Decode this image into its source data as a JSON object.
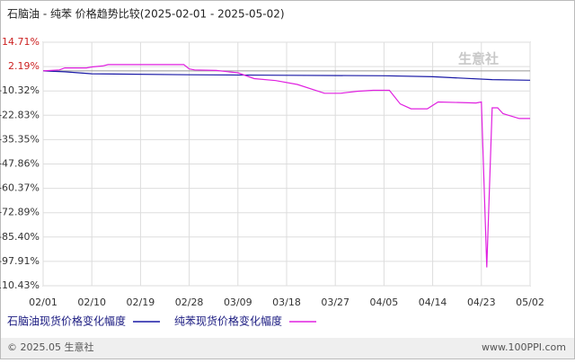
{
  "chart_data": {
    "type": "line",
    "title": "石脑油 - 纯苯 价格趋势比较(2025-02-01 - 2025-05-02)",
    "watermark": "生意社",
    "footer_left": "© 2025.05 生意社",
    "footer_right": "www.100PPI.com",
    "grid": true,
    "ylim": [
      -110.43,
      14.71
    ],
    "yticks": [
      {
        "value": 14.71,
        "label": "14.71%"
      },
      {
        "value": 2.19,
        "label": "2.19%"
      },
      {
        "value": -10.32,
        "label": "-10.32%"
      },
      {
        "value": -22.83,
        "label": "-22.83%"
      },
      {
        "value": -35.35,
        "label": "-35.35%"
      },
      {
        "value": -47.86,
        "label": "-47.86%"
      },
      {
        "value": -60.37,
        "label": "-60.37%"
      },
      {
        "value": -72.89,
        "label": "-72.89%"
      },
      {
        "value": -85.4,
        "label": "-85.40%"
      },
      {
        "value": -97.91,
        "label": "-97.91%"
      },
      {
        "value": -110.43,
        "label": "-110.43%"
      }
    ],
    "xlim": [
      "02/01",
      "05/02"
    ],
    "xticks": [
      "02/01",
      "02/10",
      "02/19",
      "02/28",
      "03/09",
      "03/18",
      "03/27",
      "04/05",
      "04/14",
      "04/23",
      "05/02"
    ],
    "series": [
      {
        "name": "石脑油现货价格变化幅度",
        "color": "#1a1aa6",
        "x": [
          "02/01",
          "02/05",
          "02/10",
          "02/28",
          "03/18",
          "04/05",
          "04/14",
          "04/25",
          "05/02"
        ],
        "values": [
          0,
          -0.5,
          -1.5,
          -2,
          -2.3,
          -2.5,
          -3,
          -4.5,
          -4.8
        ]
      },
      {
        "name": "纯苯现货价格变化幅度",
        "color": "#e020e0",
        "x": [
          "02/01",
          "02/04",
          "02/05",
          "02/09",
          "02/10",
          "02/12",
          "02/13",
          "02/27",
          "02/28",
          "03/01",
          "03/05",
          "03/09",
          "03/12",
          "03/16",
          "03/20",
          "03/25",
          "03/28",
          "03/31",
          "04/03",
          "04/06",
          "04/08",
          "04/10",
          "04/13",
          "04/15",
          "04/22",
          "04/23",
          "04/24",
          "04/25",
          "04/26",
          "04/27",
          "04/30",
          "05/02"
        ],
        "values": [
          0,
          0.5,
          1.5,
          1.5,
          2,
          2.5,
          3.2,
          3.2,
          1,
          0.5,
          0.2,
          -1,
          -4,
          -5,
          -7,
          -11.5,
          -11.5,
          -10.5,
          -10,
          -10,
          -17,
          -19.5,
          -19.5,
          -16,
          -16.5,
          -16,
          -101,
          -19,
          -19,
          -22,
          -24.5,
          -24.5
        ]
      }
    ]
  }
}
